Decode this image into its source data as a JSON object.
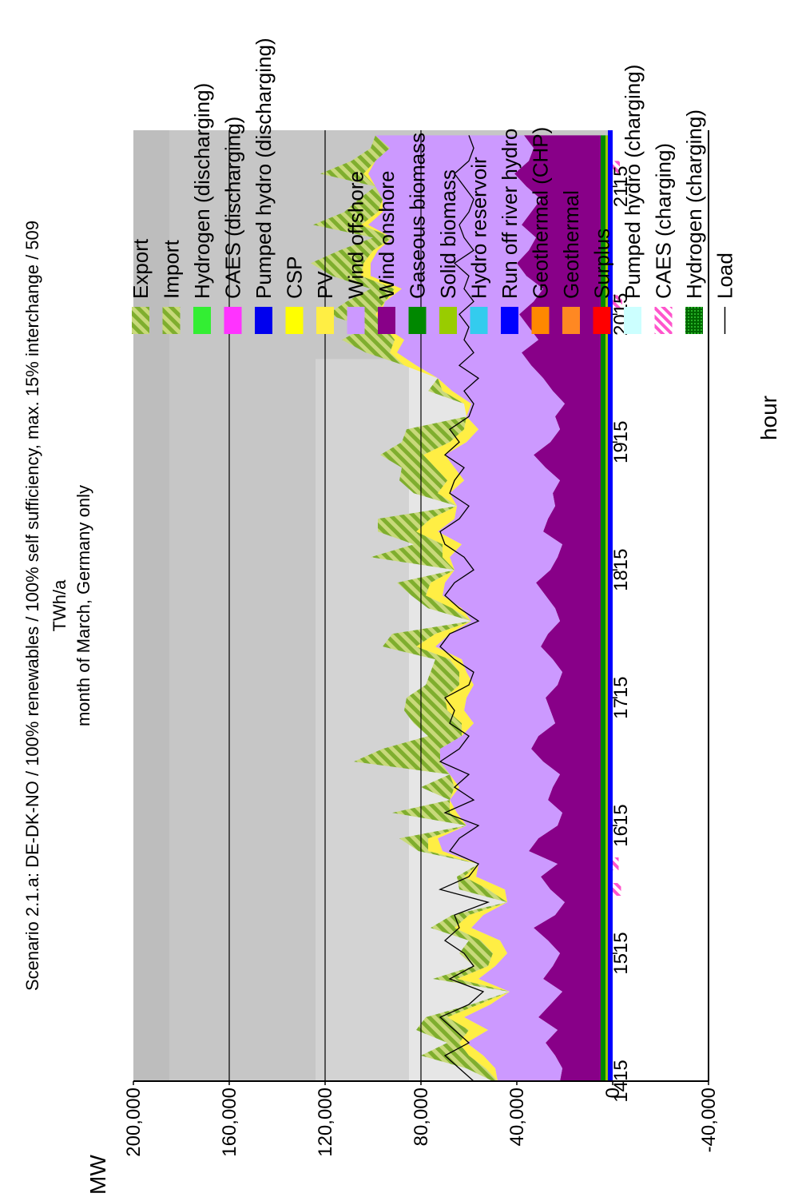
{
  "chart_data": {
    "type": "area",
    "title": "Scenario 2.1.a: DE-DK-NO / 100% renewables / 100% self sufficiency, max. 15% interchange / 509",
    "subtitle": "TWh/a",
    "subtitle2": "month of March, Germany only",
    "xlabel": "hour",
    "ylabel": "MW",
    "xlim": [
      1415,
      2159
    ],
    "ylim": [
      -40000,
      200000
    ],
    "x_ticks": [
      "1415",
      "1515",
      "1615",
      "1715",
      "1815",
      "1915",
      "2015",
      "2115"
    ],
    "y_ticks": [
      "200,000",
      "160,000",
      "120,000",
      "80,000",
      "40,000",
      "0",
      "-40,000"
    ],
    "grid": true,
    "legend_position": "right",
    "colors": {
      "export": "#8fbf3f",
      "import": "#9acd32",
      "hydrogen_dis": "#33ee33",
      "caes_dis": "#ff33ff",
      "pumped_dis": "#0000ee",
      "csp": "#ffff00",
      "pv": "#ffee44",
      "wind_offshore": "#cc99ff",
      "wind_onshore": "#880088",
      "gaseous_biomass": "#008800",
      "solid_biomass": "#99cc00",
      "hydro_reservoir": "#33ccee",
      "run_of_river": "#0000ff",
      "geothermal_chp": "#ff8800",
      "geothermal": "#ff8822",
      "surplus": "#ff0000",
      "pumped_chg": "#ccffff",
      "caes_chg": "#ff66cc",
      "hydrogen_chg": "#009900",
      "load": "#000000"
    },
    "legend": [
      {
        "label": "Export",
        "key": "export",
        "pattern": "hatch"
      },
      {
        "label": "Import",
        "key": "import",
        "pattern": "hatch"
      },
      {
        "label": "Hydrogen (discharging)",
        "key": "hydrogen_dis"
      },
      {
        "label": "CAES (discharging)",
        "key": "caes_dis"
      },
      {
        "label": "Pumped hydro (discharging)",
        "key": "pumped_dis"
      },
      {
        "label": "CSP",
        "key": "csp"
      },
      {
        "label": "PV",
        "key": "pv"
      },
      {
        "label": "Wind offshore",
        "key": "wind_offshore"
      },
      {
        "label": "Wind onshore",
        "key": "wind_onshore"
      },
      {
        "label": "Gaseous biomass",
        "key": "gaseous_biomass"
      },
      {
        "label": "Solid biomass",
        "key": "solid_biomass"
      },
      {
        "label": "Hydro reservoir",
        "key": "hydro_reservoir"
      },
      {
        "label": "Run off river hydro",
        "key": "run_of_river"
      },
      {
        "label": "Geothermal (CHP)",
        "key": "geothermal_chp"
      },
      {
        "label": "Geothermal",
        "key": "geothermal"
      },
      {
        "label": "Surplus",
        "key": "surplus"
      },
      {
        "label": "Pumped hydro (charging)",
        "key": "pumped_chg"
      },
      {
        "label": "CAES (charging)",
        "key": "caes_chg",
        "pattern": "hatch-pink"
      },
      {
        "label": "Hydrogen (charging)",
        "key": "hydrogen_chg",
        "pattern": "dots"
      },
      {
        "label": "Load",
        "key": "load",
        "line": true
      }
    ],
    "background_bands": [
      {
        "x_start": 1415,
        "x_end": 1980,
        "y_top": 85000,
        "color": "#e6e6e6"
      },
      {
        "x_start": 1415,
        "x_end": 1980,
        "y_top": 124000,
        "color": "#d3d3d3"
      },
      {
        "x_start": 1415,
        "x_end": 2159,
        "y_top": 185000,
        "color": "#c6c6c6"
      },
      {
        "x_start": 1415,
        "x_end": 2159,
        "y_top": 200000,
        "color": "#bdbdbd"
      }
    ],
    "x": [
      1415,
      1425,
      1435,
      1445,
      1455,
      1465,
      1475,
      1485,
      1495,
      1505,
      1515,
      1525,
      1535,
      1545,
      1555,
      1565,
      1575,
      1585,
      1595,
      1605,
      1615,
      1625,
      1635,
      1645,
      1655,
      1665,
      1675,
      1685,
      1695,
      1705,
      1715,
      1725,
      1735,
      1745,
      1755,
      1765,
      1775,
      1785,
      1795,
      1805,
      1815,
      1825,
      1835,
      1845,
      1855,
      1865,
      1875,
      1885,
      1895,
      1905,
      1915,
      1925,
      1935,
      1945,
      1955,
      1965,
      1975,
      1985,
      1995,
      2005,
      2015,
      2025,
      2035,
      2045,
      2055,
      2065,
      2075,
      2085,
      2095,
      2105,
      2115,
      2125,
      2135,
      2145,
      2155
    ],
    "series": [
      {
        "name": "Solid biomass",
        "key": "solid_biomass",
        "values": [
          3000,
          3000,
          3000,
          3000,
          3000,
          3000,
          3000,
          3000,
          3000,
          3000,
          3000,
          3000,
          3000,
          3000,
          3000,
          3000,
          3000,
          3000,
          3000,
          3000,
          3000,
          3000,
          3000,
          3000,
          3000,
          3000,
          3000,
          3000,
          3000,
          3000,
          3000,
          3000,
          3000,
          3000,
          3000,
          3000,
          3000,
          3000,
          3000,
          3000,
          3000,
          3000,
          3000,
          3000,
          3000,
          3000,
          3000,
          3000,
          3000,
          3000,
          3000,
          3000,
          3000,
          3000,
          3000,
          3000,
          3000,
          3000,
          3000,
          3000,
          3000,
          3000,
          3000,
          3000,
          3000,
          3000,
          3000,
          3000,
          3000,
          3000,
          3000,
          3000,
          3000,
          3000,
          3000
        ]
      },
      {
        "name": "Gaseous biomass",
        "key": "gaseous_biomass",
        "values": [
          2000,
          2000,
          2000,
          2000,
          2000,
          2000,
          2000,
          2000,
          2000,
          2000,
          2000,
          2000,
          2000,
          2000,
          2000,
          2000,
          2000,
          2000,
          2000,
          2000,
          2000,
          2000,
          2000,
          2000,
          2000,
          2000,
          2000,
          2000,
          2000,
          2000,
          2000,
          2000,
          2000,
          2000,
          2000,
          2000,
          2000,
          2000,
          2000,
          2000,
          2000,
          2000,
          2000,
          2000,
          2000,
          2000,
          2000,
          2000,
          2000,
          2000,
          2000,
          2000,
          2000,
          2000,
          2000,
          2000,
          2000,
          2000,
          2000,
          2000,
          2000,
          2000,
          2000,
          2000,
          2000,
          2000,
          2000,
          2000,
          2000,
          2000,
          2000,
          2000,
          2000,
          2000,
          2000
        ]
      },
      {
        "name": "Wind onshore",
        "key": "wind_onshore",
        "values": [
          17000,
          16000,
          19000,
          23000,
          18000,
          26000,
          21000,
          16000,
          24000,
          20000,
          17000,
          22000,
          28000,
          19000,
          15000,
          21000,
          25000,
          18000,
          30000,
          26000,
          18000,
          16000,
          22000,
          20000,
          17000,
          24000,
          29000,
          26000,
          19000,
          21000,
          23000,
          18000,
          16000,
          20000,
          25000,
          22000,
          17000,
          19000,
          23000,
          27000,
          21000,
          18000,
          16000,
          24000,
          22000,
          19000,
          20000,
          17000,
          23000,
          28000,
          21000,
          17000,
          19000,
          15000,
          20000,
          24000,
          29000,
          33000,
          26000,
          30000,
          34000,
          28000,
          24000,
          31000,
          35000,
          30000,
          27000,
          33000,
          29000,
          25000,
          31000,
          36000,
          30000,
          28000,
          32000
        ]
      },
      {
        "name": "Wind offshore",
        "key": "wind_offshore",
        "values": [
          26000,
          28000,
          30000,
          33000,
          29000,
          31000,
          25000,
          22000,
          27000,
          24000,
          22000,
          20000,
          26000,
          30000,
          24000,
          19000,
          27000,
          33000,
          36000,
          42000,
          38000,
          44000,
          41000,
          39000,
          46000,
          43000,
          38000,
          32000,
          34000,
          36000,
          33000,
          35000,
          40000,
          38000,
          44000,
          41000,
          37000,
          39000,
          43000,
          38000,
          40000,
          45000,
          42000,
          44000,
          39000,
          41000,
          43000,
          40000,
          38000,
          37000,
          35000,
          34000,
          37000,
          39000,
          42000,
          44000,
          48000,
          52000,
          56000,
          60000,
          58000,
          62000,
          59000,
          65000,
          61000,
          63000,
          60000,
          64000,
          62000,
          66000,
          63000,
          61000,
          64000,
          60000,
          62000
        ]
      },
      {
        "name": "PV",
        "key": "pv",
        "values": [
          0,
          4000,
          6000,
          3000,
          8000,
          7000,
          5000,
          0,
          9000,
          3000,
          6000,
          8000,
          7000,
          6000,
          0,
          7000,
          5000,
          0,
          6000,
          4000,
          0,
          3000,
          0,
          2000,
          0,
          0,
          0,
          0,
          5000,
          7000,
          9000,
          6000,
          3000,
          5000,
          8000,
          6000,
          0,
          4000,
          7000,
          6000,
          0,
          3000,
          8000,
          9000,
          10000,
          0,
          5000,
          7000,
          8000,
          9000,
          7000,
          6000,
          0,
          3000,
          4000,
          0,
          5000,
          3000,
          4000,
          0,
          2000,
          0,
          3000,
          4000,
          3000,
          2000,
          0,
          3000,
          2000,
          0,
          0,
          2000,
          0,
          0,
          0
        ]
      },
      {
        "name": "Export",
        "key": "export",
        "values": [
          2000,
          8000,
          20000,
          5000,
          22000,
          9000,
          3000,
          0,
          10000,
          6000,
          14000,
          5000,
          10000,
          7000,
          0,
          12000,
          3000,
          0,
          4000,
          12000,
          0,
          24000,
          0,
          14000,
          0,
          36000,
          24000,
          14000,
          20000,
          18000,
          16000,
          14000,
          12000,
          6000,
          14000,
          18000,
          0,
          10000,
          6000,
          14000,
          0,
          30000,
          12000,
          16000,
          22000,
          0,
          10000,
          20000,
          14000,
          18000,
          20000,
          24000,
          0,
          0,
          6000,
          0,
          0,
          10000,
          22000,
          8000,
          20000,
          16000,
          10000,
          12000,
          22000,
          14000,
          8000,
          20000,
          14000,
          10000,
          0,
          18000,
          10000,
          8000,
          0
        ]
      }
    ],
    "load": [
      58000,
      64000,
      70000,
      60000,
      66000,
      72000,
      60000,
      54000,
      68000,
      58000,
      62000,
      70000,
      64000,
      66000,
      52000,
      72000,
      60000,
      56000,
      68000,
      64000,
      56000,
      70000,
      58000,
      66000,
      60000,
      72000,
      64000,
      60000,
      68000,
      66000,
      70000,
      60000,
      58000,
      66000,
      72000,
      68000,
      56000,
      64000,
      70000,
      66000,
      58000,
      62000,
      70000,
      72000,
      64000,
      60000,
      68000,
      66000,
      62000,
      70000,
      64000,
      68000,
      60000,
      58000,
      62000,
      56000,
      64000,
      58000,
      62000,
      60000,
      64000,
      58000,
      62000,
      60000,
      66000,
      58000,
      62000,
      64000,
      60000,
      58000,
      62000,
      66000,
      60000,
      58000,
      60000
    ]
  }
}
